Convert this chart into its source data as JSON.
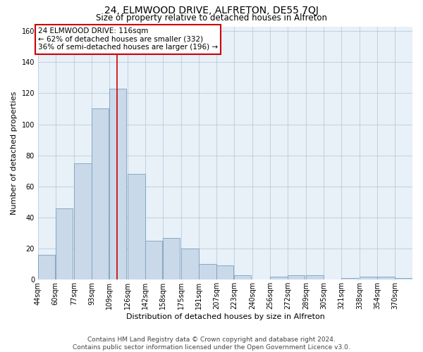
{
  "title": "24, ELMWOOD DRIVE, ALFRETON, DE55 7QJ",
  "subtitle": "Size of property relative to detached houses in Alfreton",
  "xlabel": "Distribution of detached houses by size in Alfreton",
  "ylabel": "Number of detached properties",
  "bar_color": "#c9d9ea",
  "bar_edge_color": "#7aa0bb",
  "bin_centers": [
    44,
    60,
    77,
    93,
    109,
    126,
    142,
    158,
    175,
    191,
    207,
    223,
    240,
    256,
    272,
    289,
    305,
    321,
    338,
    354,
    370
  ],
  "bar_heights": [
    16,
    46,
    75,
    110,
    123,
    68,
    25,
    27,
    20,
    10,
    9,
    3,
    0,
    2,
    3,
    3,
    0,
    1,
    2,
    2,
    1
  ],
  "bin_width": 16,
  "property_size": 116,
  "vline_color": "#cc0000",
  "annotation_box_color": "#cc0000",
  "annotation_text": "24 ELMWOOD DRIVE: 116sqm",
  "annotation_line1": "← 62% of detached houses are smaller (332)",
  "annotation_line2": "36% of semi-detached houses are larger (196) →",
  "ylim": [
    0,
    163
  ],
  "yticks": [
    0,
    20,
    40,
    60,
    80,
    100,
    120,
    140,
    160
  ],
  "grid_color": "#b0c4d8",
  "bg_color": "#e8f0f8",
  "footer_line1": "Contains HM Land Registry data © Crown copyright and database right 2024.",
  "footer_line2": "Contains public sector information licensed under the Open Government Licence v3.0.",
  "title_fontsize": 10,
  "subtitle_fontsize": 8.5,
  "axis_label_fontsize": 8,
  "tick_fontsize": 7,
  "annotation_fontsize": 7.5,
  "footer_fontsize": 6.5
}
